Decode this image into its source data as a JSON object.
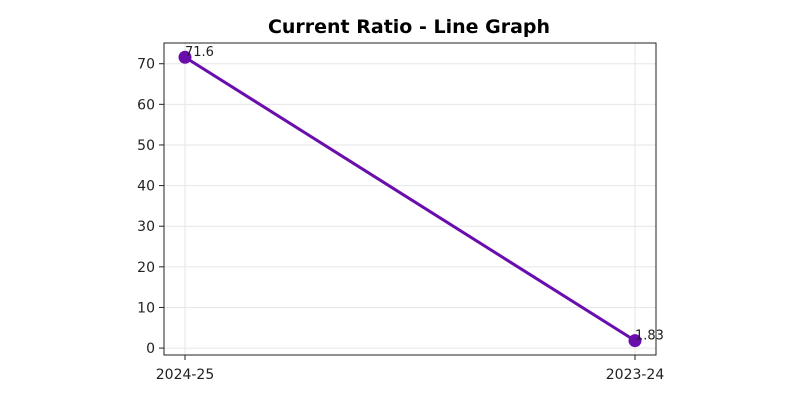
{
  "chart_data": {
    "type": "line",
    "title": "Current Ratio - Line Graph",
    "xlabel": "",
    "ylabel": "",
    "categories": [
      "2024-25",
      "2023-24"
    ],
    "series": [
      {
        "values": [
          71.6,
          1.83
        ],
        "color": "#6a0dad"
      }
    ],
    "data_labels": [
      "71.6",
      "1.83"
    ],
    "ylim": [
      -1.7,
      75.1
    ],
    "yticks": [
      0,
      10,
      20,
      30,
      40,
      50,
      60,
      70
    ],
    "ytick_labels": [
      "0",
      "10",
      "20",
      "30",
      "40",
      "50",
      "60",
      "70"
    ],
    "grid": true,
    "legend": "none"
  }
}
